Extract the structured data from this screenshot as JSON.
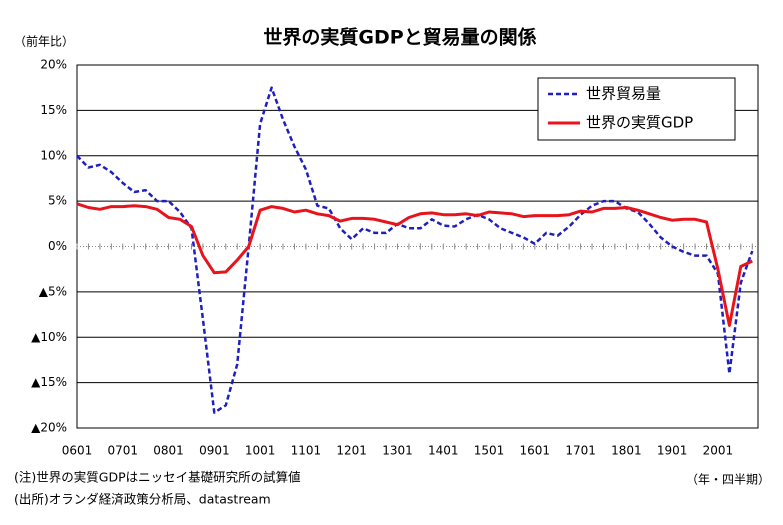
{
  "chart_data": {
    "type": "line",
    "title": "世界の実質GDPと貿易量の関係",
    "y_label": "（前年比）",
    "x_label": "（年・四半期）",
    "notes": [
      "(注)世界の実質GDPはニッセイ基礎研究所の試算値",
      "(出所)オランダ経済政策分析局、datastream"
    ],
    "categories": [
      "0601",
      null,
      null,
      null,
      "0701",
      null,
      null,
      null,
      "0801",
      null,
      null,
      null,
      "0901",
      null,
      null,
      null,
      "1001",
      null,
      null,
      null,
      "1101",
      null,
      null,
      null,
      "1201",
      null,
      null,
      null,
      "1301",
      null,
      null,
      null,
      "1401",
      null,
      null,
      null,
      "1501",
      null,
      null,
      null,
      "1601",
      null,
      null,
      null,
      "1701",
      null,
      null,
      null,
      "1801",
      null,
      null,
      null,
      "1901",
      null,
      null,
      null,
      "2001",
      null,
      null,
      null
    ],
    "series": [
      {
        "name": "世界貿易量",
        "color": "#1f1fbf",
        "dash": true,
        "values": [
          10,
          8.7,
          9,
          8.2,
          7,
          6,
          6.2,
          5,
          5,
          3.8,
          2,
          -8,
          -18.3,
          -17.5,
          -13,
          0,
          13.5,
          17.5,
          14,
          11,
          8.5,
          4.5,
          4.2,
          2,
          0.8,
          2,
          1.5,
          1.5,
          2.5,
          2,
          2,
          3,
          2.3,
          2.2,
          3,
          3.5,
          3,
          2,
          1.5,
          1,
          0.3,
          1.5,
          1.2,
          2.2,
          3.5,
          4.5,
          5,
          5,
          4.2,
          3.8,
          2.5,
          1,
          0,
          -0.6,
          -1,
          -1,
          -3,
          -14,
          -4,
          -0.5
        ]
      },
      {
        "name": "世界の実質GDP",
        "color": "#e8141c",
        "dash": false,
        "values": [
          4.7,
          4.3,
          4.1,
          4.4,
          4.4,
          4.5,
          4.4,
          4.1,
          3.2,
          3.0,
          2.2,
          -1,
          -2.9,
          -2.8,
          -1.5,
          0,
          4,
          4.4,
          4.2,
          3.8,
          4.0,
          3.6,
          3.4,
          2.8,
          3.1,
          3.1,
          3.0,
          2.7,
          2.4,
          3.2,
          3.6,
          3.7,
          3.5,
          3.5,
          3.6,
          3.4,
          3.8,
          3.7,
          3.6,
          3.3,
          3.4,
          3.4,
          3.4,
          3.5,
          3.9,
          3.8,
          4.2,
          4.2,
          4.3,
          4.0,
          3.6,
          3.2,
          2.9,
          3.0,
          3.0,
          2.7,
          -2.5,
          -8.7,
          -2.2,
          -1.6
        ]
      }
    ],
    "ylim": [
      -20,
      20
    ],
    "yticks": [
      {
        "value": 20,
        "label": "20%"
      },
      {
        "value": 15,
        "label": "15%"
      },
      {
        "value": 10,
        "label": "10%"
      },
      {
        "value": 5,
        "label": "5%"
      },
      {
        "value": 0,
        "label": "0%"
      },
      {
        "value": -5,
        "label": "▲5%"
      },
      {
        "value": -10,
        "label": "▲10%"
      },
      {
        "value": -15,
        "label": "▲15%"
      },
      {
        "value": -20,
        "label": "▲20%"
      }
    ],
    "grid": true,
    "legend": "upper right"
  }
}
